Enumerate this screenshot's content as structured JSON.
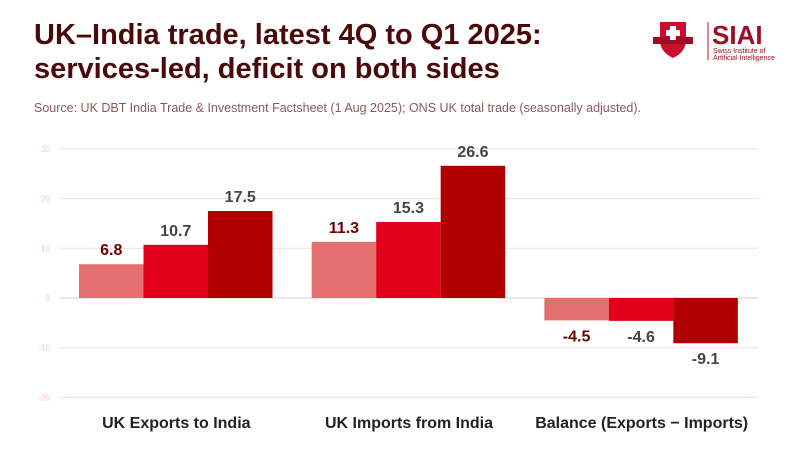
{
  "title_lines": [
    "UK–India trade, latest 4Q to Q1 2025:",
    "services-led, deficit on both sides"
  ],
  "subtitle": "Source: UK DBT India Trade & Investment Factsheet (1 Aug 2025); ONS UK total trade (seasonally adjusted).",
  "logo": {
    "name": "SIAI",
    "tagline_1": "Swiss Institute of",
    "tagline_2": "Artificial Intelligence"
  },
  "colors": {
    "series": [
      "#e36f6f",
      "#e3001b",
      "#b00000"
    ],
    "label_dark_red": "#6e0000",
    "label_gray": "#444444",
    "grid": "#f7dada",
    "tick": "#f2c8c8"
  },
  "chart_data": {
    "type": "bar",
    "title": "UK–India trade, latest 4Q to Q1 2025: services-led, deficit on both sides",
    "categories": [
      "UK Exports to India",
      "UK Imports from India",
      "Balance (Exports − Imports)"
    ],
    "series": [
      {
        "values": [
          6.8,
          11.3,
          -4.5
        ]
      },
      {
        "values": [
          10.7,
          15.3,
          -4.6
        ]
      },
      {
        "values": [
          17.5,
          26.6,
          -9.1
        ]
      }
    ],
    "data_labels": [
      [
        "6.8",
        "10.7",
        "17.5"
      ],
      [
        "11.3",
        "15.3",
        "26.6"
      ],
      [
        "-4.5",
        "-4.6",
        "-9.1"
      ]
    ],
    "yticks": [
      30,
      20,
      10,
      0,
      -10,
      -20
    ],
    "ylim": [
      -20,
      30
    ],
    "grid": true,
    "legend": "none"
  }
}
